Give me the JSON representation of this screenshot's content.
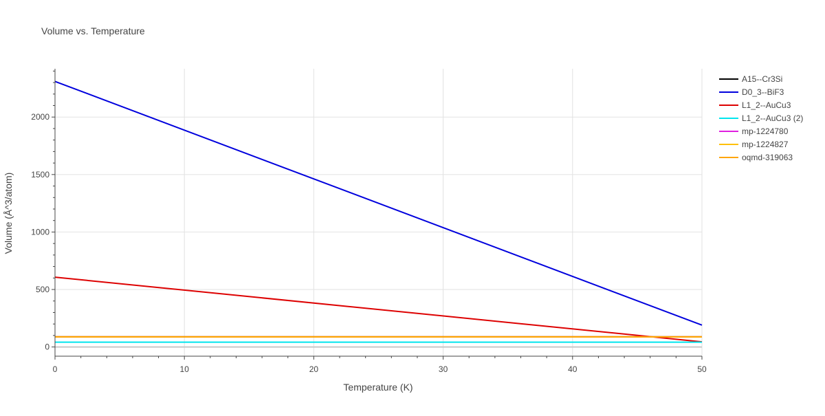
{
  "chart_data": {
    "type": "line",
    "title": "Volume vs. Temperature",
    "xlabel": "Temperature (K)",
    "ylabel": "Volume (Å^3/atom)",
    "xlim": [
      0,
      50
    ],
    "ylim": [
      -80,
      2420
    ],
    "xticks": [
      0,
      10,
      20,
      30,
      40,
      50
    ],
    "yticks": [
      0,
      500,
      1000,
      1500,
      2000
    ],
    "grid": true,
    "legend_position": "top-right",
    "series": [
      {
        "name": "A15--Cr3Si",
        "color": "#000000",
        "x": [
          0,
          50
        ],
        "y": [
          88,
          88
        ]
      },
      {
        "name": "D0_3--BiF3",
        "color": "#0000dd",
        "x": [
          0,
          50
        ],
        "y": [
          2310,
          190
        ]
      },
      {
        "name": "L1_2--AuCu3",
        "color": "#dd0000",
        "x": [
          0,
          50
        ],
        "y": [
          607,
          45
        ]
      },
      {
        "name": "L1_2--AuCu3 (2)",
        "color": "#00e5ee",
        "x": [
          0,
          50
        ],
        "y": [
          42,
          42
        ]
      },
      {
        "name": "mp-1224780",
        "color": "#e020e0",
        "x": [
          0,
          50
        ],
        "y": [
          88,
          88
        ]
      },
      {
        "name": "mp-1224827",
        "color": "#ffc000",
        "x": [
          0,
          50
        ],
        "y": [
          88,
          88
        ]
      },
      {
        "name": "oqmd-319063",
        "color": "#ffa500",
        "x": [
          0,
          50
        ],
        "y": [
          88,
          88
        ]
      }
    ]
  }
}
